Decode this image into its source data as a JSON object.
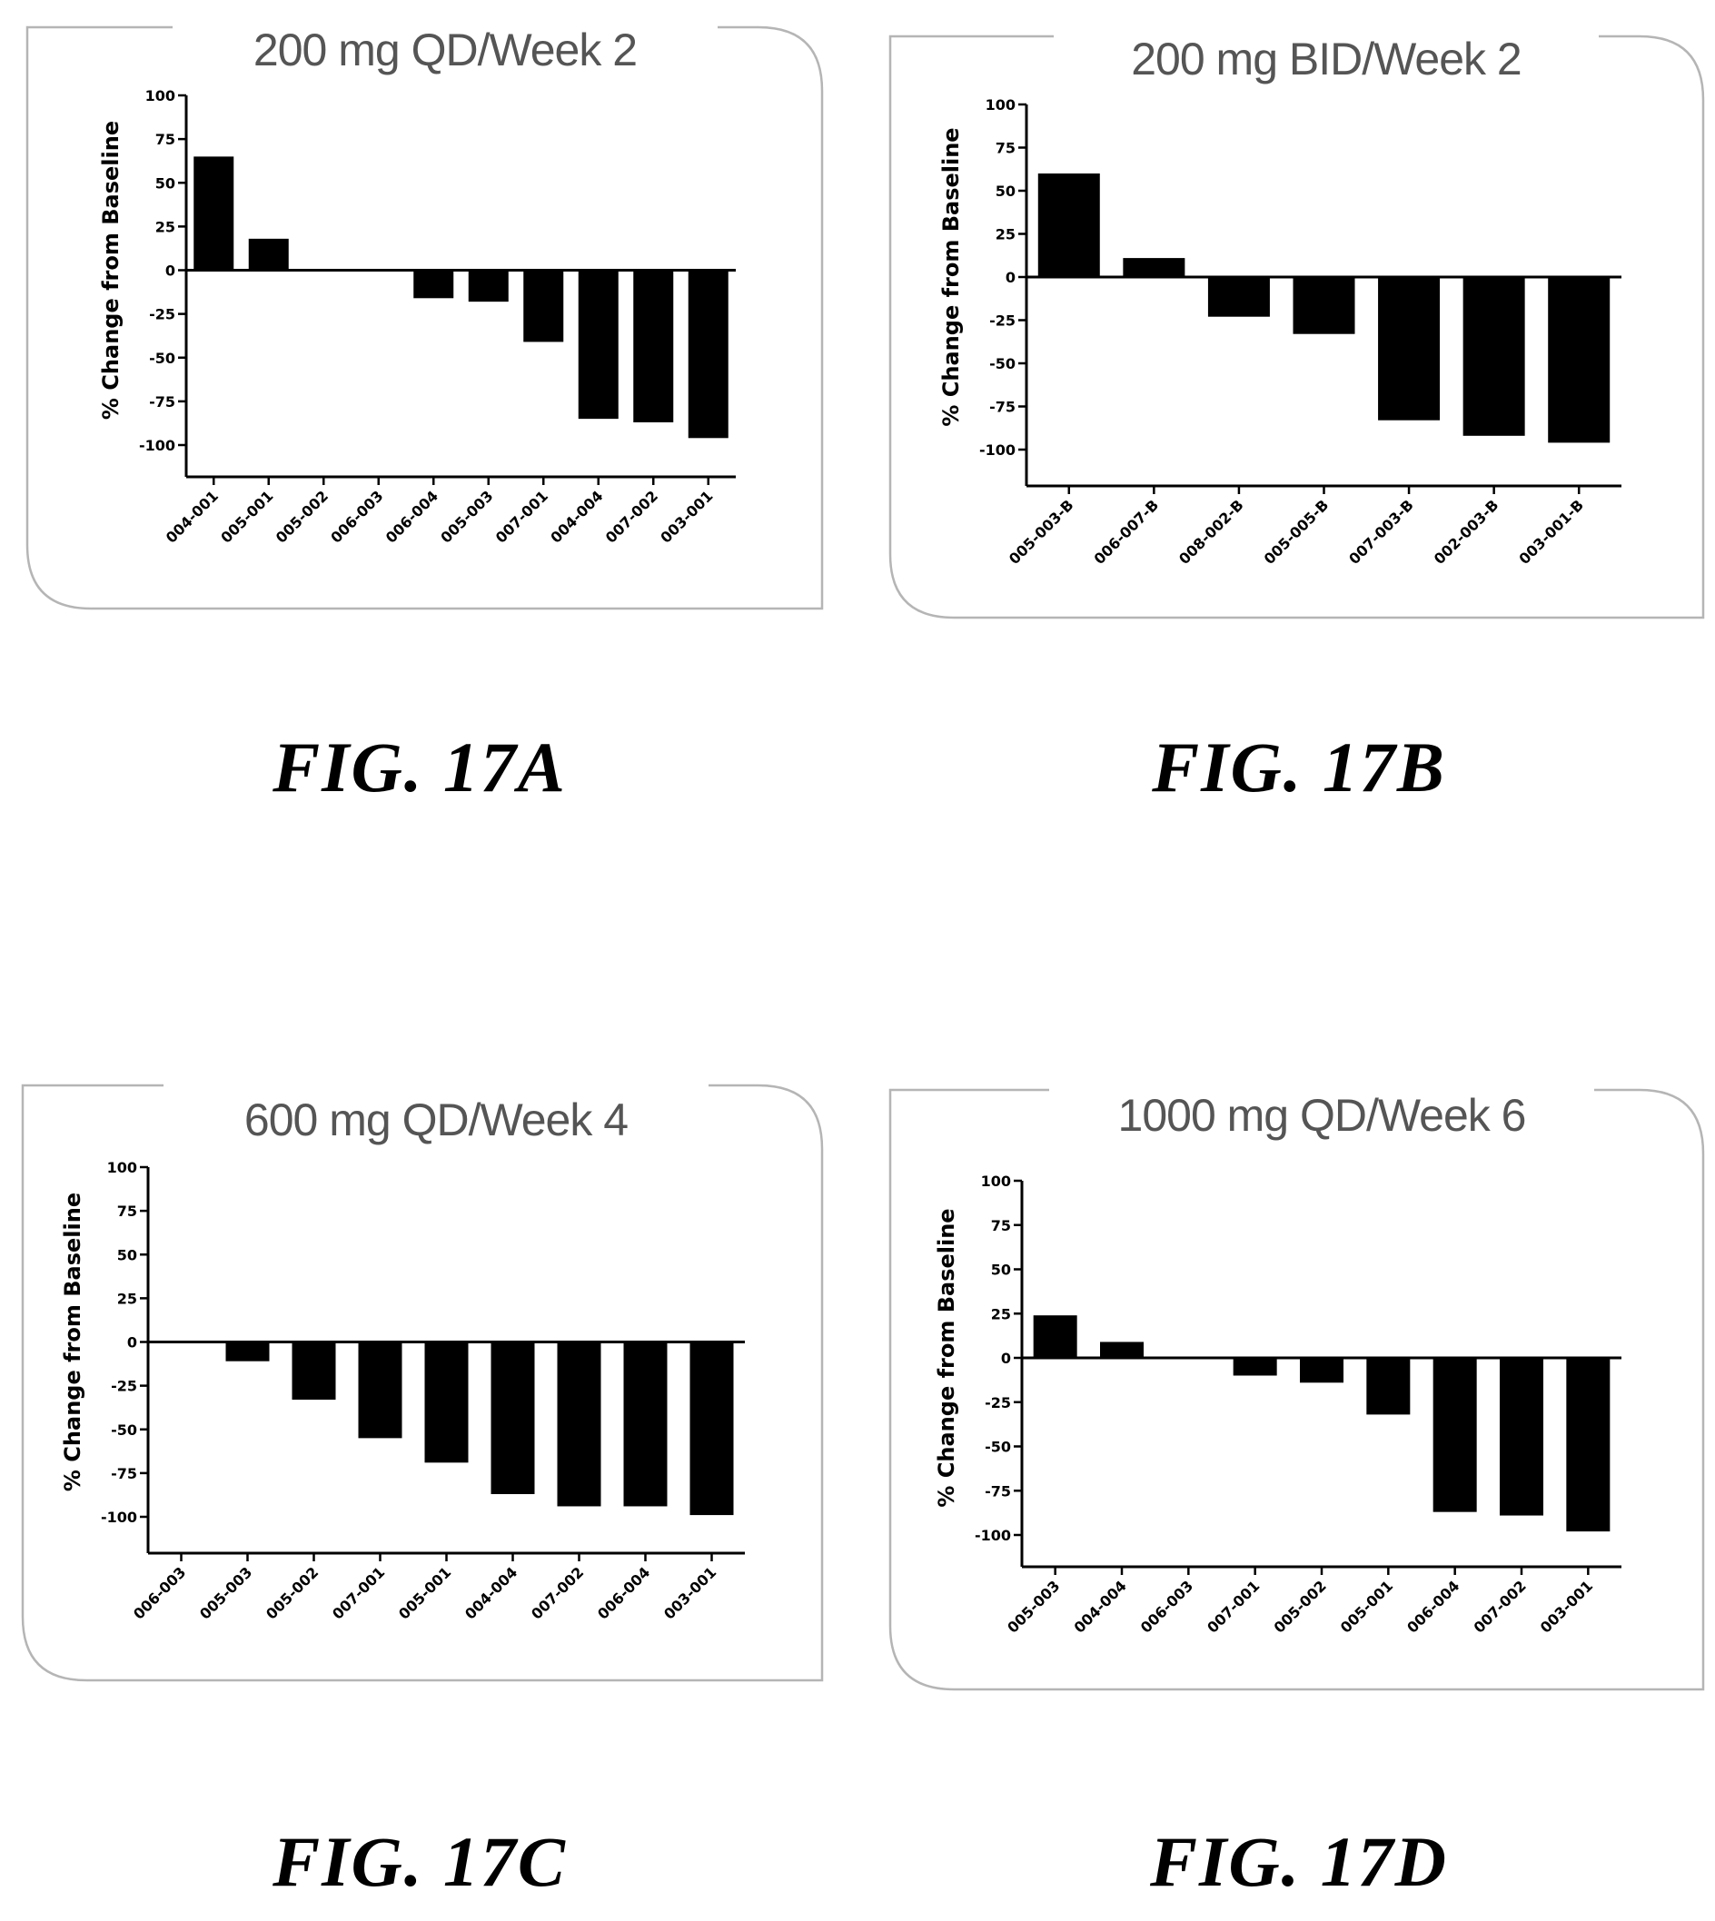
{
  "chart_data": [
    {
      "type": "bar",
      "title": "200 mg QD/Week 2",
      "ylabel": "% Change from Baseline",
      "ylim": [
        -100,
        100
      ],
      "yticks": [
        "100",
        "75",
        "50",
        "25",
        "0",
        "-25",
        "-50",
        "-75",
        "-100"
      ],
      "categories": [
        "004-001",
        "005-001",
        "005-002",
        "006-003",
        "006-004",
        "005-003",
        "007-001",
        "004-004",
        "007-002",
        "003-001"
      ],
      "values": [
        65,
        18,
        0,
        0,
        -16,
        -18,
        -41,
        -85,
        -87,
        -96
      ],
      "caption": "FIG. 17A"
    },
    {
      "type": "bar",
      "title": "200 mg BID/Week 2",
      "ylabel": "% Change from Baseline",
      "ylim": [
        -100,
        100
      ],
      "yticks": [
        "100",
        "75",
        "50",
        "25",
        "0",
        "-25",
        "-50",
        "-75",
        "-100"
      ],
      "categories": [
        "005-003-B",
        "006-007-B",
        "008-002-B",
        "005-005-B",
        "007-003-B",
        "002-003-B",
        "003-001-B"
      ],
      "values": [
        60,
        11,
        -23,
        -33,
        -83,
        -92,
        -96
      ],
      "caption": "FIG. 17B"
    },
    {
      "type": "bar",
      "title": "600 mg QD/Week 4",
      "ylabel": "% Change from Baseline",
      "ylim": [
        -100,
        100
      ],
      "yticks": [
        "100",
        "75",
        "50",
        "25",
        "0",
        "-25",
        "-50",
        "-75",
        "-100"
      ],
      "categories": [
        "006-003",
        "005-003",
        "005-002",
        "007-001",
        "005-001",
        "004-004",
        "007-002",
        "006-004",
        "003-001"
      ],
      "values": [
        0,
        -11,
        -33,
        -55,
        -69,
        -87,
        -94,
        -94,
        -99
      ],
      "caption": "FIG. 17C"
    },
    {
      "type": "bar",
      "title": "1000 mg QD/Week 6",
      "ylabel": "% Change from Baseline",
      "ylim": [
        -100,
        100
      ],
      "yticks": [
        "100",
        "75",
        "50",
        "25",
        "0",
        "-25",
        "-50",
        "-75",
        "-100"
      ],
      "categories": [
        "005-003",
        "004-004",
        "006-003",
        "007-001",
        "005-002",
        "005-001",
        "006-004",
        "007-002",
        "003-001"
      ],
      "values": [
        24,
        9,
        0,
        -10,
        -14,
        -32,
        -87,
        -89,
        -98
      ],
      "caption": "FIG. 17D"
    }
  ]
}
